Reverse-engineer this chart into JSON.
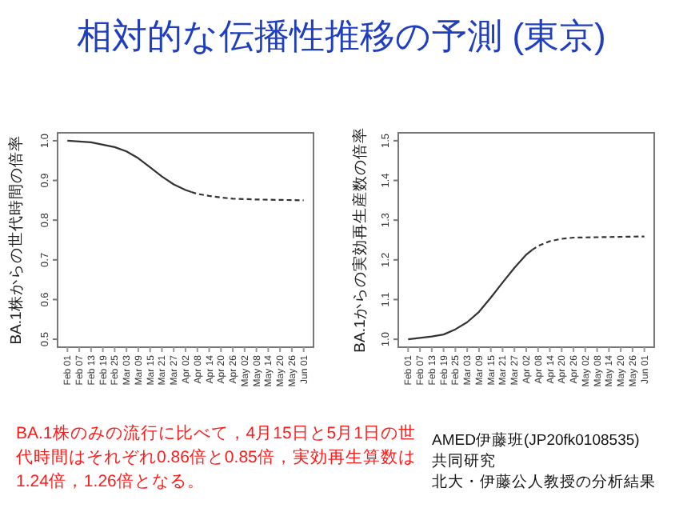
{
  "chart_data": [
    {
      "type": "line",
      "title": "相対的な伝播性推移の予測 (東京)",
      "ylabel": "BA.1株からの世代時間の倍率",
      "xlim": [
        "--01-27",
        "--06-06"
      ],
      "ylim": [
        0.48,
        1.02
      ],
      "yticks": [
        0.5,
        0.6,
        0.7,
        0.8,
        0.9,
        {
          "value": 1,
          "label": "1.0"
        }
      ],
      "xticks": [
        {
          "value": "--02-01",
          "label": "Feb 01"
        },
        {
          "value": "--02-07",
          "label": "Feb 07"
        },
        {
          "value": "--02-13",
          "label": "Feb 13"
        },
        {
          "value": "--02-19",
          "label": "Feb 19"
        },
        {
          "value": "--02-25",
          "label": "Feb 25"
        },
        {
          "value": "--03-03",
          "label": "Mar 03"
        },
        {
          "value": "--03-09",
          "label": "Mar 09"
        },
        {
          "value": "--03-15",
          "label": "Mar 15"
        },
        {
          "value": "--03-21",
          "label": "Mar 21"
        },
        {
          "value": "--03-27",
          "label": "Mar 27"
        },
        {
          "value": "--04-02",
          "label": "Apr 02"
        },
        {
          "value": "--04-08",
          "label": "Apr 08"
        },
        {
          "value": "--04-14",
          "label": "Apr 14"
        },
        {
          "value": "--04-20",
          "label": "Apr 20"
        },
        {
          "value": "--04-26",
          "label": "Apr 26"
        },
        {
          "value": "--05-02",
          "label": "May 02"
        },
        {
          "value": "--05-08",
          "label": "May 08"
        },
        {
          "value": "--05-14",
          "label": "May 14"
        },
        {
          "value": "--05-20",
          "label": "May 20"
        },
        {
          "value": "--05-26",
          "label": "May 26"
        },
        {
          "value": "--06-01",
          "label": "Jun 01"
        }
      ],
      "series": [
        {
          "color": "#333333",
          "line_style": "solid",
          "x": [
            "--02-01",
            "--02-13",
            "--02-25",
            "--03-03",
            "--03-09",
            "--03-15",
            "--03-21",
            "--03-27",
            "--04-02",
            "--04-05"
          ],
          "values": [
            1.0,
            0.996,
            0.984,
            0.973,
            0.956,
            0.933,
            0.91,
            0.89,
            0.876,
            0.871
          ]
        },
        {
          "color": "#333333",
          "line_style": "dashed",
          "x": [
            "--04-05",
            "--04-08",
            "--04-14",
            "--04-20",
            "--04-26",
            "--05-08",
            "--06-01"
          ],
          "values": [
            0.871,
            0.866,
            0.861,
            0.857,
            0.854,
            0.852,
            0.85
          ]
        }
      ],
      "annotations": [
        "BA.1株のみの流行に比べて，4月15日と5月1日の世代時間はそれぞれ0.86倍と0.85倍，実効再生算数は1.24倍，1.26倍となる。"
      ]
    },
    {
      "type": "line",
      "ylabel": "BA.1からの実効再生産数の倍率",
      "xlim": [
        "--01-27",
        "--06-06"
      ],
      "ylim": [
        0.98,
        1.52
      ],
      "yticks": [
        {
          "value": 1,
          "label": "1.0"
        },
        1.1,
        1.2,
        1.3,
        1.4,
        1.5
      ],
      "xticks": [
        {
          "value": "--02-01",
          "label": "Feb 01"
        },
        {
          "value": "--02-07",
          "label": "Feb 07"
        },
        {
          "value": "--02-13",
          "label": "Feb 13"
        },
        {
          "value": "--02-19",
          "label": "Feb 19"
        },
        {
          "value": "--02-25",
          "label": "Feb 25"
        },
        {
          "value": "--03-03",
          "label": "Mar 03"
        },
        {
          "value": "--03-09",
          "label": "Mar 09"
        },
        {
          "value": "--03-15",
          "label": "Mar 15"
        },
        {
          "value": "--03-21",
          "label": "Mar 21"
        },
        {
          "value": "--03-27",
          "label": "Mar 27"
        },
        {
          "value": "--04-02",
          "label": "Apr 02"
        },
        {
          "value": "--04-08",
          "label": "Apr 08"
        },
        {
          "value": "--04-14",
          "label": "Apr 14"
        },
        {
          "value": "--04-20",
          "label": "Apr 20"
        },
        {
          "value": "--04-26",
          "label": "Apr 26"
        },
        {
          "value": "--05-02",
          "label": "May 02"
        },
        {
          "value": "--05-08",
          "label": "May 08"
        },
        {
          "value": "--05-14",
          "label": "May 14"
        },
        {
          "value": "--05-20",
          "label": "May 20"
        },
        {
          "value": "--05-26",
          "label": "May 26"
        },
        {
          "value": "--06-01",
          "label": "Jun 01"
        }
      ],
      "series": [
        {
          "color": "#333333",
          "line_style": "solid",
          "x": [
            "--02-01",
            "--02-13",
            "--02-19",
            "--02-25",
            "--03-03",
            "--03-09",
            "--03-15",
            "--03-21",
            "--03-27",
            "--04-02",
            "--04-05"
          ],
          "values": [
            1.0,
            1.007,
            1.012,
            1.025,
            1.043,
            1.069,
            1.105,
            1.143,
            1.18,
            1.213,
            1.225
          ]
        },
        {
          "color": "#333333",
          "line_style": "dashed",
          "x": [
            "--04-05",
            "--04-08",
            "--04-14",
            "--04-20",
            "--04-26",
            "--05-08",
            "--06-01"
          ],
          "values": [
            1.225,
            1.235,
            1.247,
            1.253,
            1.256,
            1.257,
            1.259
          ]
        }
      ],
      "annotations": [
        "AMED伊藤班(JP20fk0108535)",
        "共同研究",
        "北大・伊藤公人教授の分析結果"
      ]
    }
  ]
}
